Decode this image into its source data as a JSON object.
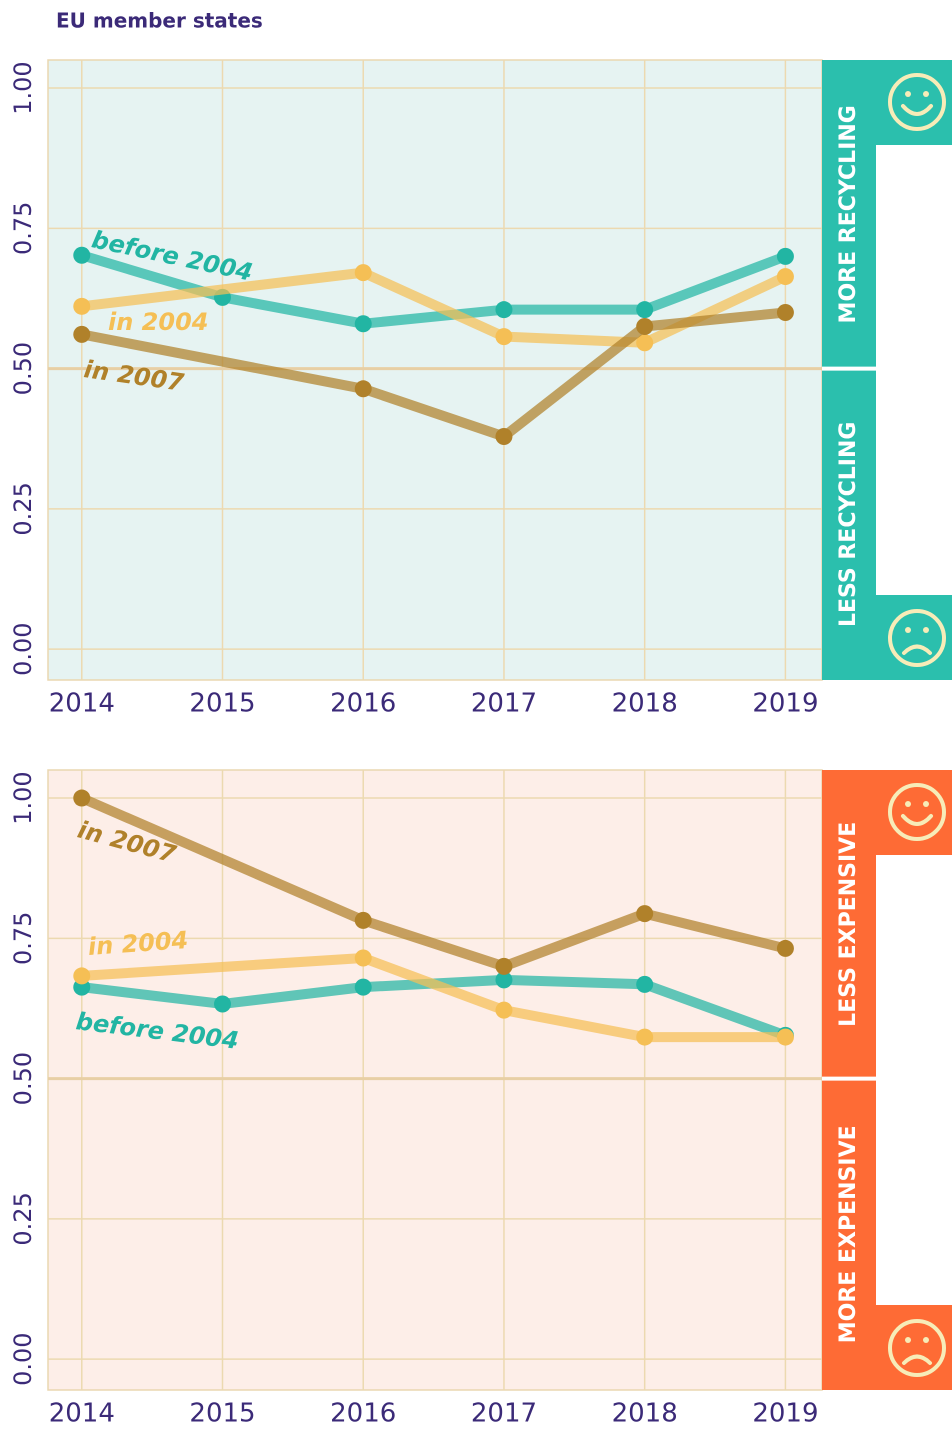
{
  "subtitle": "EU member states",
  "chart_data": [
    {
      "type": "line",
      "xlim": [
        2013.76,
        2019.26
      ],
      "xticks": [
        2014,
        2015,
        2016,
        2017,
        2018,
        2019
      ],
      "ylim": [
        -0.055,
        1.05
      ],
      "yticks": [
        {
          "value": 0,
          "label": "0.00"
        },
        {
          "value": 0.25,
          "label": "0.25"
        },
        {
          "value": 0.5,
          "label": "0.50"
        },
        {
          "value": 0.75,
          "label": "0.75"
        },
        {
          "value": 1,
          "label": "1.00"
        }
      ],
      "grid": true,
      "reference_line": 0.5,
      "background": "#e6f3f2",
      "band_color": "#2bbfad",
      "upper_label": "MORE RECYCLING",
      "lower_label": "LESS RECYCLING",
      "series": [
        {
          "name": "before 2004",
          "color": "#22b5a3",
          "x": [
            2014,
            2015,
            2016,
            2017,
            2018,
            2019
          ],
          "values": [
            0.702,
            0.627,
            0.58,
            0.605,
            0.605,
            0.7
          ]
        },
        {
          "name": "in 2004",
          "color": "#f5bf55",
          "x": [
            2014,
            2016,
            2017,
            2018,
            2019
          ],
          "values": [
            0.611,
            0.671,
            0.557,
            0.546,
            0.664
          ]
        },
        {
          "name": "in 2007",
          "color": "#b0812a",
          "x": [
            2014,
            2016,
            2017,
            2018,
            2019
          ],
          "values": [
            0.561,
            0.464,
            0.379,
            0.575,
            0.6
          ]
        }
      ]
    },
    {
      "type": "line",
      "xlim": [
        2013.76,
        2019.26
      ],
      "xticks": [
        2014,
        2015,
        2016,
        2017,
        2018,
        2019
      ],
      "ylim": [
        -0.055,
        1.05
      ],
      "yticks": [
        {
          "value": 0,
          "label": "0.00"
        },
        {
          "value": 0.25,
          "label": "0.25"
        },
        {
          "value": 0.5,
          "label": "0.50"
        },
        {
          "value": 0.75,
          "label": "0.75"
        },
        {
          "value": 1,
          "label": "1.00"
        }
      ],
      "grid": true,
      "reference_line": 0.5,
      "background": "#fdeee8",
      "band_color": "#fe6b35",
      "upper_label": "LESS EXPENSIVE",
      "lower_label": "MORE EXPENSIVE",
      "series": [
        {
          "name": "before 2004",
          "color": "#22b5a3",
          "x": [
            2014,
            2015,
            2016,
            2017,
            2018,
            2019
          ],
          "values": [
            0.663,
            0.633,
            0.663,
            0.676,
            0.668,
            0.577
          ]
        },
        {
          "name": "in 2004",
          "color": "#f5bf55",
          "x": [
            2014,
            2016,
            2017,
            2018,
            2019
          ],
          "values": [
            0.683,
            0.715,
            0.622,
            0.574,
            0.574
          ]
        },
        {
          "name": "in 2007",
          "color": "#b0812a",
          "x": [
            2014,
            2016,
            2017,
            2018,
            2019
          ],
          "values": [
            1.0,
            0.782,
            0.7,
            0.794,
            0.732
          ]
        }
      ]
    }
  ]
}
